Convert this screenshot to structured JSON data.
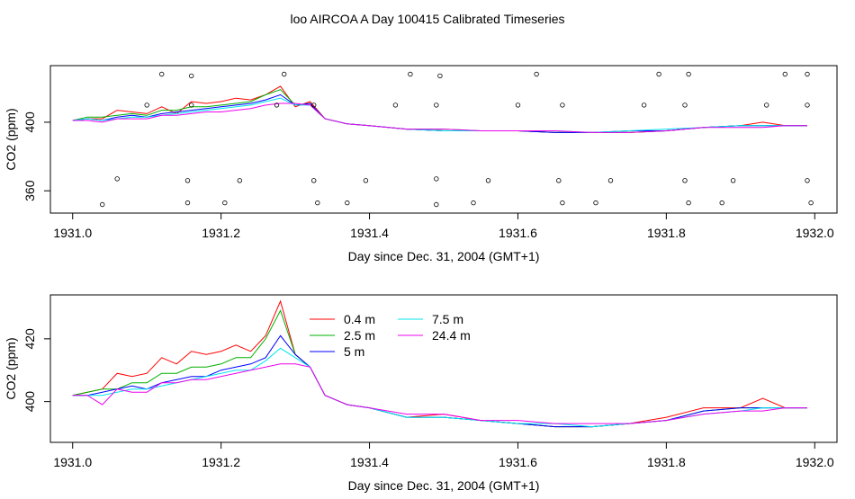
{
  "title": "loo AIRCOA A  Day 100415  Calibrated Timeseries",
  "chart_data": [
    {
      "type": "scatter",
      "xlabel": "Day since Dec. 31, 2004 (GMT+1)",
      "ylabel": "CO2 (ppm)",
      "xlim": [
        1930.97,
        1932.03
      ],
      "ylim": [
        347,
        433
      ],
      "xticks": [
        "1931.0",
        "1931.2",
        "1931.4",
        "1931.6",
        "1931.8",
        "1932.0"
      ],
      "yticks": [
        "360",
        "400"
      ],
      "series": [
        {
          "color": "#ff0000",
          "x": [
            1931.0,
            1931.02,
            1931.04,
            1931.06,
            1931.08,
            1931.1,
            1931.12,
            1931.14,
            1931.16,
            1931.18,
            1931.2,
            1931.22,
            1931.24,
            1931.26,
            1931.28,
            1931.3,
            1931.32,
            1931.34,
            1931.37,
            1931.4,
            1931.45,
            1931.5,
            1931.55,
            1931.6,
            1931.65,
            1931.7,
            1931.75,
            1931.8,
            1931.85,
            1931.9,
            1931.93,
            1931.96,
            1931.99
          ],
          "y": [
            401,
            402,
            402,
            407,
            406,
            405,
            409,
            405,
            412,
            411,
            412,
            414,
            413,
            416,
            421,
            409,
            412,
            402,
            399,
            398,
            396,
            395,
            395,
            395,
            394,
            394,
            394,
            395,
            397,
            398,
            400,
            398,
            398
          ]
        },
        {
          "color": "#00b000",
          "x": [
            1931.0,
            1931.02,
            1931.04,
            1931.06,
            1931.08,
            1931.1,
            1931.12,
            1931.14,
            1931.16,
            1931.18,
            1931.2,
            1931.22,
            1931.24,
            1931.26,
            1931.28,
            1931.3,
            1931.32,
            1931.34,
            1931.37,
            1931.4,
            1931.45,
            1931.5,
            1931.55,
            1931.6,
            1931.65,
            1931.7,
            1931.75,
            1931.8,
            1931.85,
            1931.9,
            1931.93,
            1931.96,
            1931.99
          ],
          "y": [
            401,
            403,
            403,
            404,
            405,
            404,
            407,
            407,
            409,
            409,
            410,
            411,
            412,
            416,
            419,
            410,
            411,
            402,
            399,
            398,
            396,
            396,
            395,
            395,
            394,
            394,
            394,
            395,
            397,
            398,
            398,
            398,
            398
          ]
        },
        {
          "color": "#0000ff",
          "x": [
            1931.0,
            1931.02,
            1931.04,
            1931.06,
            1931.08,
            1931.1,
            1931.12,
            1931.14,
            1931.16,
            1931.18,
            1931.2,
            1931.22,
            1931.24,
            1931.26,
            1931.28,
            1931.3,
            1931.32,
            1931.34,
            1931.37,
            1931.4,
            1931.45,
            1931.5,
            1931.55,
            1931.6,
            1931.65,
            1931.7,
            1931.75,
            1931.8,
            1931.85,
            1931.9,
            1931.93,
            1931.96,
            1931.99
          ],
          "y": [
            401,
            402,
            401,
            403,
            404,
            403,
            405,
            406,
            407,
            408,
            409,
            410,
            411,
            413,
            416,
            410,
            411,
            402,
            399,
            398,
            396,
            395,
            395,
            395,
            394,
            394,
            395,
            395,
            397,
            398,
            398,
            398,
            398
          ]
        },
        {
          "color": "#00e5ee",
          "x": [
            1931.0,
            1931.02,
            1931.04,
            1931.06,
            1931.08,
            1931.1,
            1931.12,
            1931.14,
            1931.16,
            1931.18,
            1931.2,
            1931.22,
            1931.24,
            1931.26,
            1931.28,
            1931.3,
            1931.32,
            1931.34,
            1931.37,
            1931.4,
            1931.45,
            1931.5,
            1931.55,
            1931.6,
            1931.65,
            1931.7,
            1931.75,
            1931.8,
            1931.85,
            1931.9,
            1931.93,
            1931.96,
            1931.99
          ],
          "y": [
            401,
            402,
            401,
            402,
            403,
            403,
            404,
            405,
            406,
            407,
            408,
            409,
            410,
            412,
            414,
            410,
            410,
            402,
            399,
            398,
            396,
            395,
            395,
            395,
            395,
            394,
            395,
            396,
            397,
            398,
            398,
            398,
            398
          ]
        },
        {
          "color": "#ee00ee",
          "x": [
            1931.0,
            1931.02,
            1931.04,
            1931.06,
            1931.08,
            1931.1,
            1931.12,
            1931.14,
            1931.16,
            1931.18,
            1931.2,
            1931.22,
            1931.24,
            1931.26,
            1931.28,
            1931.3,
            1931.32,
            1931.34,
            1931.37,
            1931.4,
            1931.45,
            1931.5,
            1931.55,
            1931.6,
            1931.65,
            1931.7,
            1931.75,
            1931.8,
            1931.85,
            1931.9,
            1931.93,
            1931.96,
            1931.99
          ],
          "y": [
            401,
            401,
            400,
            402,
            402,
            402,
            404,
            404,
            405,
            406,
            406,
            407,
            408,
            410,
            411,
            411,
            410,
            402,
            399,
            398,
            396,
            396,
            395,
            395,
            395,
            394,
            394,
            395,
            397,
            397,
            397,
            398,
            398
          ]
        }
      ],
      "points": {
        "x": [
          1931.04,
          1931.06,
          1931.1,
          1931.12,
          1931.155,
          1931.155,
          1931.16,
          1931.16,
          1931.205,
          1931.225,
          1931.275,
          1931.285,
          1931.325,
          1931.325,
          1931.33,
          1931.37,
          1931.395,
          1931.435,
          1931.455,
          1931.49,
          1931.49,
          1931.49,
          1931.495,
          1931.54,
          1931.56,
          1931.6,
          1931.625,
          1931.655,
          1931.66,
          1931.66,
          1931.705,
          1931.725,
          1931.77,
          1931.79,
          1931.825,
          1931.825,
          1931.83,
          1931.83,
          1931.875,
          1931.89,
          1931.935,
          1931.96,
          1931.99,
          1931.99,
          1931.99,
          1931.995
        ],
        "y": [
          352,
          367,
          410,
          428,
          353,
          366,
          410,
          427,
          353,
          366,
          410,
          428,
          366,
          410,
          353,
          353,
          366,
          410,
          428,
          367,
          410,
          352,
          427,
          353,
          366,
          410,
          428,
          366,
          410,
          353,
          353,
          366,
          410,
          428,
          366,
          410,
          353,
          428,
          353,
          366,
          410,
          428,
          366,
          410,
          428,
          353
        ]
      }
    },
    {
      "type": "line",
      "xlabel": "Day since Dec. 31, 2004 (GMT+1)",
      "ylabel": "CO2 (ppm)",
      "xlim": [
        1930.97,
        1932.03
      ],
      "ylim": [
        387,
        434
      ],
      "xticks": [
        "1931.0",
        "1931.2",
        "1931.4",
        "1931.6",
        "1931.8",
        "1932.0"
      ],
      "yticks": [
        "400",
        "420"
      ],
      "legend_position": "top-center",
      "series": [
        {
          "name": "0.4 m",
          "color": "#ff0000",
          "x": [
            1931.0,
            1931.02,
            1931.04,
            1931.06,
            1931.08,
            1931.1,
            1931.12,
            1931.14,
            1931.16,
            1931.18,
            1931.2,
            1931.22,
            1931.24,
            1931.26,
            1931.28,
            1931.3,
            1931.32,
            1931.34,
            1931.37,
            1931.4,
            1931.45,
            1931.5,
            1931.55,
            1931.6,
            1931.65,
            1931.7,
            1931.75,
            1931.8,
            1931.85,
            1931.9,
            1931.93,
            1931.96,
            1931.99
          ],
          "y": [
            402,
            403,
            404,
            409,
            408,
            409,
            414,
            412,
            416,
            415,
            416,
            418,
            416,
            421,
            432,
            415,
            411,
            402,
            399,
            398,
            395,
            396,
            394,
            393,
            392,
            392,
            393,
            395,
            398,
            398,
            401,
            398,
            398
          ]
        },
        {
          "name": "2.5 m",
          "color": "#00b000",
          "x": [
            1931.0,
            1931.02,
            1931.04,
            1931.06,
            1931.08,
            1931.1,
            1931.12,
            1931.14,
            1931.16,
            1931.18,
            1931.2,
            1931.22,
            1931.24,
            1931.26,
            1931.28,
            1931.3,
            1931.32,
            1931.34,
            1931.37,
            1931.4,
            1931.45,
            1931.5,
            1931.55,
            1931.6,
            1931.65,
            1931.7,
            1931.75,
            1931.8,
            1931.85,
            1931.9,
            1931.93,
            1931.96,
            1931.99
          ],
          "y": [
            402,
            403,
            404,
            404,
            406,
            406,
            409,
            409,
            411,
            411,
            412,
            414,
            414,
            420,
            429,
            415,
            411,
            402,
            399,
            398,
            395,
            395,
            394,
            393,
            392,
            392,
            393,
            394,
            397,
            398,
            398,
            398,
            398
          ]
        },
        {
          "name": "5 m",
          "color": "#0000ff",
          "x": [
            1931.0,
            1931.02,
            1931.04,
            1931.06,
            1931.08,
            1931.1,
            1931.12,
            1931.14,
            1931.16,
            1931.18,
            1931.2,
            1931.22,
            1931.24,
            1931.26,
            1931.28,
            1931.3,
            1931.32,
            1931.34,
            1931.37,
            1931.4,
            1931.45,
            1931.5,
            1931.55,
            1931.6,
            1931.65,
            1931.7,
            1931.75,
            1931.8,
            1931.85,
            1931.9,
            1931.93,
            1931.96,
            1931.99
          ],
          "y": [
            402,
            402,
            403,
            404,
            405,
            404,
            406,
            407,
            408,
            408,
            410,
            411,
            412,
            414,
            421,
            415,
            411,
            402,
            399,
            398,
            395,
            395,
            394,
            393,
            392,
            392,
            393,
            394,
            397,
            398,
            398,
            398,
            398
          ]
        },
        {
          "name": "7.5 m",
          "color": "#00e5ee",
          "x": [
            1931.0,
            1931.02,
            1931.04,
            1931.06,
            1931.08,
            1931.1,
            1931.12,
            1931.14,
            1931.16,
            1931.18,
            1931.2,
            1931.22,
            1931.24,
            1931.26,
            1931.28,
            1931.3,
            1931.32,
            1931.34,
            1931.37,
            1931.4,
            1931.45,
            1931.5,
            1931.55,
            1931.6,
            1931.65,
            1931.7,
            1931.75,
            1931.8,
            1931.85,
            1931.9,
            1931.93,
            1931.96,
            1931.99
          ],
          "y": [
            402,
            402,
            402,
            403,
            404,
            404,
            405,
            406,
            407,
            408,
            409,
            410,
            410,
            413,
            417,
            414,
            411,
            402,
            399,
            398,
            395,
            395,
            394,
            393,
            393,
            392,
            393,
            394,
            396,
            397,
            398,
            398,
            398
          ]
        },
        {
          "name": "24.4 m",
          "color": "#ee00ee",
          "x": [
            1931.0,
            1931.02,
            1931.04,
            1931.06,
            1931.08,
            1931.1,
            1931.12,
            1931.14,
            1931.16,
            1931.18,
            1931.2,
            1931.22,
            1931.24,
            1931.26,
            1931.28,
            1931.3,
            1931.32,
            1931.34,
            1931.37,
            1931.4,
            1931.45,
            1931.5,
            1931.55,
            1931.6,
            1931.65,
            1931.7,
            1931.75,
            1931.8,
            1931.85,
            1931.9,
            1931.93,
            1931.96,
            1931.99
          ],
          "y": [
            402,
            402,
            399,
            404,
            403,
            403,
            406,
            406,
            407,
            407,
            408,
            409,
            410,
            411,
            412,
            412,
            411,
            402,
            399,
            398,
            396,
            396,
            394,
            394,
            393,
            393,
            393,
            394,
            396,
            397,
            397,
            398,
            398
          ]
        }
      ]
    }
  ]
}
